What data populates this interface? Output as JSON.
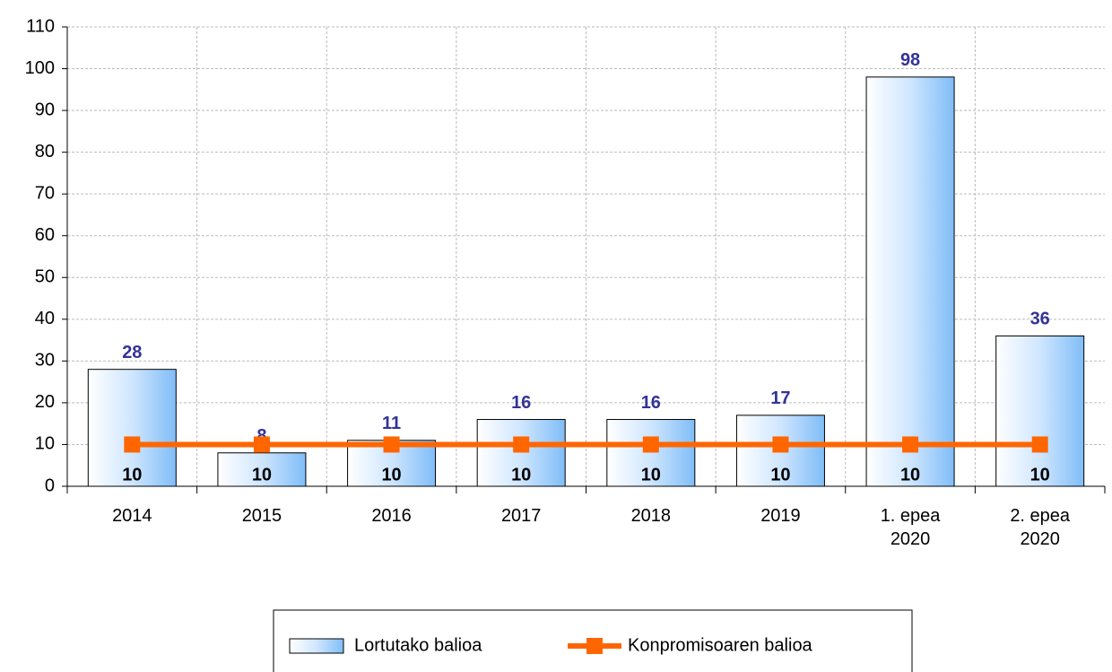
{
  "chart_data": {
    "type": "bar",
    "categories": [
      "2014",
      "2015",
      "2016",
      "2017",
      "2018",
      "2019",
      "1. epea\n2020",
      "2. epea\n2020"
    ],
    "series": [
      {
        "name": "Lortutako balioa",
        "type": "bar",
        "color": "#99ccff",
        "values": [
          28,
          8,
          11,
          16,
          16,
          17,
          98,
          36
        ]
      },
      {
        "name": "Konpromisoaren balioa",
        "type": "line",
        "color": "#ff6600",
        "values": [
          10,
          10,
          10,
          10,
          10,
          10,
          10,
          10
        ]
      }
    ],
    "ylim": [
      0,
      110
    ],
    "yticks": [
      0,
      10,
      20,
      30,
      40,
      50,
      60,
      70,
      80,
      90,
      100,
      110
    ],
    "grid": true,
    "legend": "bottom"
  }
}
